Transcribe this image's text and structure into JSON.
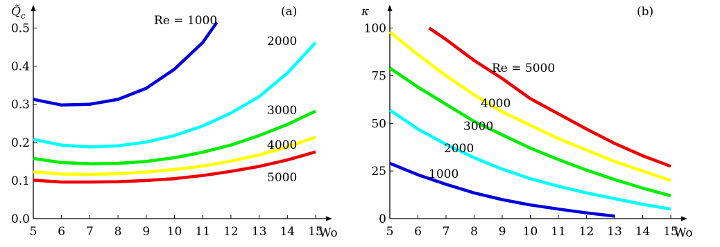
{
  "chart_data": [
    {
      "type": "line",
      "panel_label": "(a)",
      "xlabel": "Wo",
      "ylabel": "Q̃",
      "ylabel_sub": "c",
      "xlim": [
        5,
        15
      ],
      "ylim": [
        0,
        0.55
      ],
      "x_ticks": [
        5,
        6,
        7,
        8,
        9,
        10,
        11,
        12,
        13,
        14,
        15
      ],
      "y_ticks": [
        "0.0",
        "0.1",
        "0.2",
        "0.3",
        "0.4",
        "0.5"
      ],
      "grid": false,
      "series": [
        {
          "name": "Re = 1000",
          "color": "#0000dd",
          "x": [
            5,
            6,
            7,
            8,
            9,
            10,
            11,
            11.5
          ],
          "y": [
            0.313,
            0.298,
            0.3,
            0.313,
            0.342,
            0.392,
            0.462,
            0.515
          ]
        },
        {
          "name": "2000",
          "color": "#00ffff",
          "x": [
            5,
            6,
            7,
            8,
            9,
            10,
            11,
            12,
            13,
            14,
            15
          ],
          "y": [
            0.208,
            0.193,
            0.188,
            0.191,
            0.201,
            0.218,
            0.243,
            0.277,
            0.32,
            0.382,
            0.462
          ]
        },
        {
          "name": "3000",
          "color": "#00ee00",
          "x": [
            5,
            6,
            7,
            8,
            9,
            10,
            11,
            12,
            13,
            14,
            15
          ],
          "y": [
            0.158,
            0.147,
            0.144,
            0.145,
            0.15,
            0.16,
            0.174,
            0.193,
            0.218,
            0.247,
            0.282
          ]
        },
        {
          "name": "4000",
          "color": "#ffff00",
          "x": [
            5,
            6,
            7,
            8,
            9,
            10,
            11,
            12,
            13,
            14,
            15
          ],
          "y": [
            0.123,
            0.117,
            0.116,
            0.118,
            0.122,
            0.129,
            0.138,
            0.151,
            0.167,
            0.188,
            0.214
          ]
        },
        {
          "name": "5000",
          "color": "#ee0000",
          "x": [
            5,
            6,
            7,
            8,
            9,
            10,
            11,
            12,
            13,
            14,
            15
          ],
          "y": [
            0.101,
            0.096,
            0.096,
            0.097,
            0.1,
            0.105,
            0.113,
            0.124,
            0.137,
            0.154,
            0.175
          ]
        }
      ]
    },
    {
      "type": "line",
      "panel_label": "(b)",
      "xlabel": "Wo",
      "ylabel": "κ",
      "xlim": [
        5,
        15
      ],
      "ylim": [
        0,
        110
      ],
      "x_ticks": [
        5,
        6,
        7,
        8,
        9,
        10,
        11,
        12,
        13,
        14,
        15
      ],
      "y_ticks": [
        "0",
        "25",
        "50",
        "75",
        "100"
      ],
      "grid": false,
      "series": [
        {
          "name": "Re = 5000",
          "color": "#ee0000",
          "x": [
            6.4,
            7,
            8,
            9,
            10,
            11,
            12,
            13,
            14,
            15
          ],
          "y": [
            100,
            94,
            83,
            73.5,
            63,
            55,
            47,
            39.5,
            33,
            27.5
          ]
        },
        {
          "name": "4000",
          "color": "#ffff00",
          "x": [
            5,
            6,
            7,
            8,
            9,
            10,
            11,
            12,
            13,
            14,
            15
          ],
          "y": [
            98,
            86,
            75,
            65,
            56,
            49,
            42,
            36,
            30,
            25,
            20
          ]
        },
        {
          "name": "3000",
          "color": "#00ee00",
          "x": [
            5,
            6,
            7,
            8,
            9,
            10,
            11,
            12,
            13,
            14,
            15
          ],
          "y": [
            79,
            69,
            60,
            51,
            44,
            37,
            31,
            25.5,
            20.5,
            16,
            12
          ]
        },
        {
          "name": "2000",
          "color": "#00ffff",
          "x": [
            5,
            6,
            7,
            8,
            9,
            10,
            11,
            12,
            13,
            14,
            15
          ],
          "y": [
            57,
            47,
            39,
            32,
            26,
            21,
            17,
            13.5,
            10.5,
            7.5,
            5
          ]
        },
        {
          "name": "1000",
          "color": "#0000dd",
          "x": [
            5,
            6,
            7,
            8,
            9,
            10,
            11,
            12,
            13
          ],
          "y": [
            29,
            23,
            18,
            13.5,
            10,
            7.2,
            5,
            3,
            1.3
          ]
        }
      ]
    }
  ]
}
